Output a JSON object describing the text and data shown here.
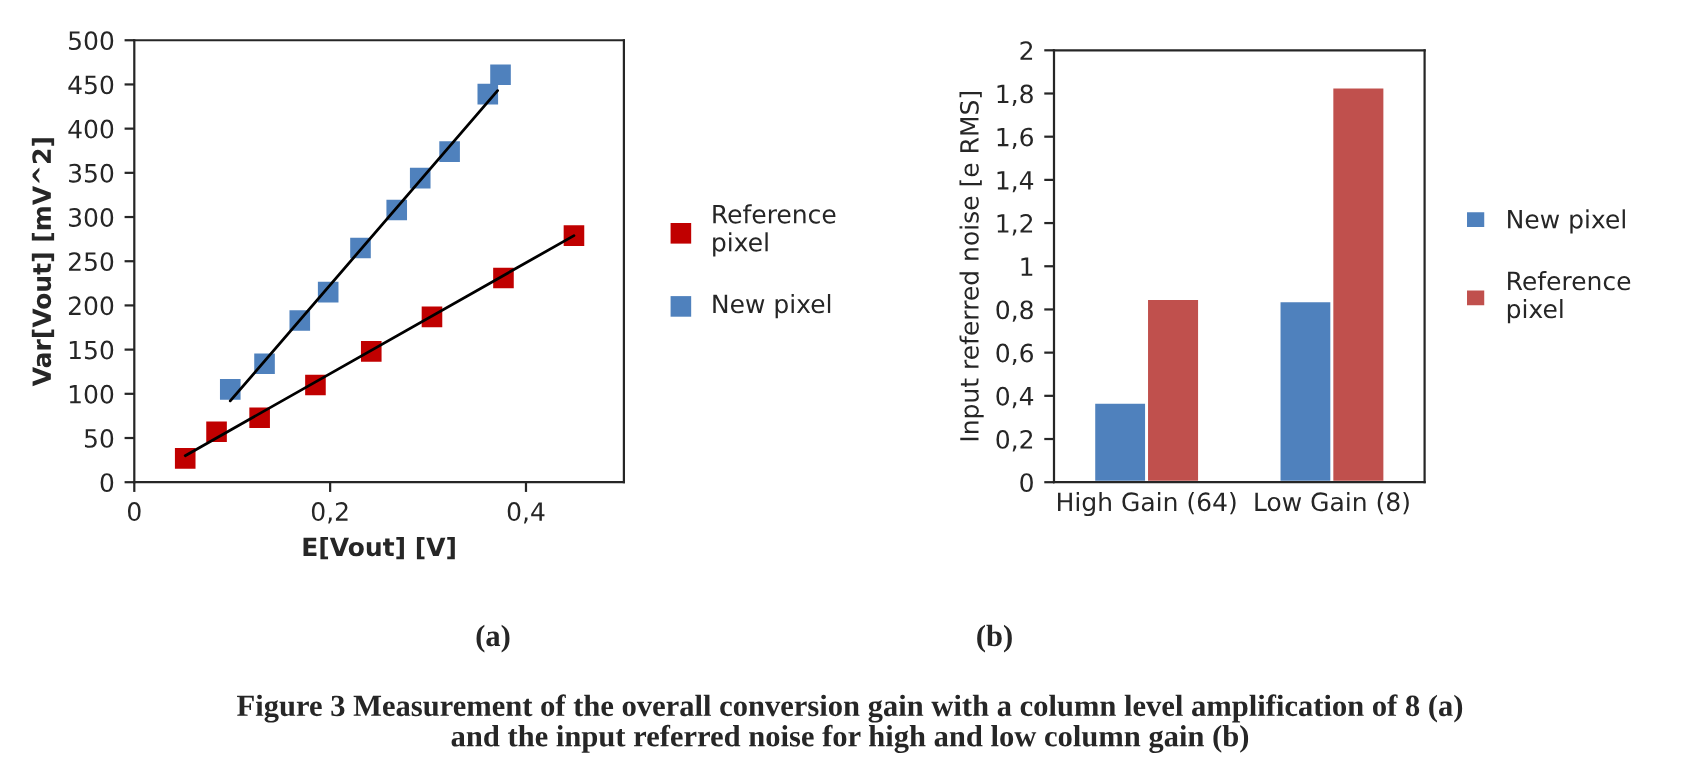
{
  "chart_data": [
    {
      "type": "scatter",
      "xlabel": "E[Vout] [V]",
      "ylabel": "Var[Vout] [mV^2]",
      "xlim": [
        0,
        0.5
      ],
      "ylim": [
        0,
        500
      ],
      "xticks": [
        0,
        {
          "value": 0.2,
          "label": "0,2"
        },
        {
          "value": 0.4,
          "label": "0,4"
        }
      ],
      "yticks": [
        0,
        50,
        100,
        150,
        200,
        250,
        300,
        350,
        400,
        450,
        500
      ],
      "grid": false,
      "legend": "right",
      "series": [
        {
          "name": "Reference pixel",
          "marker": "square",
          "color": "#c00000",
          "x": [
            0.052,
            0.084,
            0.128,
            0.185,
            0.242,
            0.304,
            0.377,
            0.449
          ],
          "values": [
            27,
            57,
            73,
            110,
            148,
            187,
            231,
            279
          ]
        },
        {
          "name": "New pixel",
          "marker": "square",
          "color": "#4f81bd",
          "x": [
            0.098,
            0.133,
            0.169,
            0.198,
            0.231,
            0.268,
            0.292,
            0.322,
            0.361,
            0.374
          ],
          "values": [
            105,
            134,
            183,
            215,
            265,
            308,
            344,
            374,
            439,
            461
          ]
        },
        {
          "type": "line",
          "marker": "none",
          "color": "#000000",
          "x": [
            0.052,
            0.449
          ],
          "values": [
            30,
            279
          ]
        },
        {
          "type": "line",
          "marker": "none",
          "color": "#000000",
          "x": [
            0.098,
            0.371
          ],
          "values": [
            92,
            443
          ]
        }
      ],
      "annotations": [
        "(a)",
        "Figure 3 Measurement of the overall conversion gain with a column level amplification of 8 (a)\nand the input referred noise for high and low column gain (b)"
      ]
    },
    {
      "type": "bar",
      "ylabel": "Input referred noise [e RMS]",
      "categories": [
        "High Gain (64)",
        "Low Gain (8)"
      ],
      "ylim": [
        0,
        2
      ],
      "yticks": [
        0,
        {
          "value": 0.2,
          "label": "0,2"
        },
        {
          "value": 0.4,
          "label": "0,4"
        },
        {
          "value": 0.6,
          "label": "0,6"
        },
        {
          "value": 0.8,
          "label": "0,8"
        },
        1,
        {
          "value": 1.2,
          "label": "1,2"
        },
        {
          "value": 1.4,
          "label": "1,4"
        },
        {
          "value": 1.6,
          "label": "1,6"
        },
        {
          "value": 1.8,
          "label": "1,8"
        },
        2
      ],
      "grid": false,
      "legend": "right",
      "series": [
        {
          "name": "New pixel",
          "color": "#4f81bd",
          "values": [
            0.37,
            0.84
          ]
        },
        {
          "name": "Reference pixel",
          "color": "#c0504d",
          "values": [
            0.85,
            1.83
          ]
        }
      ],
      "annotations": [
        "(b)"
      ]
    }
  ]
}
